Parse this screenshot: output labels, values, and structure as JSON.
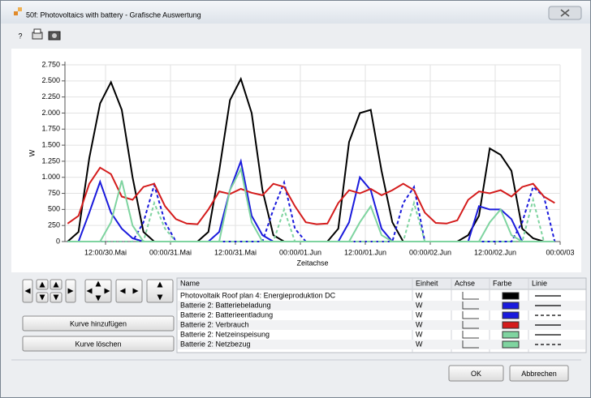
{
  "window": {
    "title": "50f: Photovoltaics with battery - Grafische Auswertung",
    "toolbar": {
      "help": "?"
    },
    "buttons": {
      "add_curve": "Kurve hinzufügen",
      "delete_curve": "Kurve löschen",
      "ok": "OK",
      "cancel": "Abbrechen"
    }
  },
  "legend_table": {
    "columns": [
      "Name",
      "Einheit",
      "Achse",
      "Farbe",
      "Linie"
    ]
  },
  "chart_data": {
    "type": "line",
    "xlabel": "Zeitachse",
    "ylabel": "W",
    "grid": true,
    "x": [
      5,
      7,
      9,
      11,
      13,
      15,
      17,
      19,
      21,
      23,
      25,
      27,
      29,
      31,
      33,
      35,
      37,
      39,
      41,
      43,
      45,
      47,
      49,
      51,
      53,
      55,
      57,
      59,
      61,
      63,
      65,
      67,
      69,
      71,
      73,
      75,
      77,
      79,
      81,
      83,
      85,
      87,
      89,
      91,
      93,
      95
    ],
    "xlim": [
      4.5,
      96
    ],
    "xticks": [
      {
        "value": 12,
        "label": "12:00/30.Mai"
      },
      {
        "value": 24,
        "label": "00:00/31.Mai"
      },
      {
        "value": 36,
        "label": "12:00/31.Mai"
      },
      {
        "value": 48,
        "label": "00:00/01.Jun"
      },
      {
        "value": 60,
        "label": "12:00/01.Jun"
      },
      {
        "value": 72,
        "label": "00:00/02.Jun"
      },
      {
        "value": 84,
        "label": "12:00/02.Jun"
      },
      {
        "value": 96,
        "label": "00:00/03"
      }
    ],
    "ylim": [
      0,
      2750
    ],
    "yticks": [
      0,
      250,
      500,
      750,
      {
        "value": 1000,
        "label": "1.000"
      },
      {
        "value": 1250,
        "label": "1.250"
      },
      {
        "value": 1500,
        "label": "1.500"
      },
      {
        "value": 1750,
        "label": "1.750"
      },
      {
        "value": 2000,
        "label": "2.000"
      },
      {
        "value": 2250,
        "label": "2.250"
      },
      {
        "value": 2500,
        "label": "2.500"
      },
      {
        "value": 2750,
        "label": "2.750"
      }
    ],
    "series": [
      {
        "name": "Photovoltaik Roof plan 4: Energieproduktion DC",
        "unit": "W",
        "color": "#000000",
        "dashed": false,
        "values": [
          0,
          150,
          1300,
          2150,
          2480,
          2050,
          1000,
          150,
          0,
          0,
          0,
          0,
          0,
          150,
          1100,
          2200,
          2530,
          2000,
          800,
          100,
          0,
          0,
          0,
          0,
          0,
          200,
          1550,
          2000,
          2050,
          1100,
          300,
          0,
          0,
          0,
          0,
          0,
          0,
          100,
          400,
          1450,
          1350,
          1100,
          200,
          50,
          0,
          0
        ]
      },
      {
        "name": "Batterie 2: Batteriebeladung",
        "unit": "W",
        "color": "#1a1adc",
        "dashed": false,
        "values": [
          0,
          0,
          450,
          930,
          450,
          200,
          50,
          0,
          0,
          0,
          0,
          0,
          0,
          0,
          150,
          800,
          1250,
          400,
          100,
          0,
          0,
          0,
          0,
          0,
          0,
          0,
          300,
          1000,
          800,
          200,
          0,
          0,
          0,
          0,
          0,
          0,
          0,
          0,
          550,
          500,
          500,
          350,
          0,
          0,
          0,
          0
        ]
      },
      {
        "name": "Batterie 2: Batterieentladung",
        "unit": "W",
        "color": "#1a1adc",
        "dashed": true,
        "values": [
          0,
          0,
          0,
          0,
          0,
          0,
          0,
          300,
          880,
          300,
          0,
          0,
          0,
          0,
          0,
          0,
          0,
          0,
          0,
          500,
          920,
          200,
          0,
          0,
          0,
          0,
          0,
          0,
          0,
          0,
          0,
          600,
          850,
          0,
          0,
          0,
          0,
          0,
          0,
          0,
          0,
          0,
          300,
          850,
          700,
          0
        ]
      },
      {
        "name": "Batterie 2: Verbrauch",
        "unit": "W",
        "color": "#d41c1c",
        "dashed": false,
        "values": [
          280,
          400,
          900,
          1150,
          1050,
          700,
          650,
          850,
          900,
          550,
          350,
          280,
          270,
          500,
          780,
          740,
          820,
          760,
          720,
          900,
          850,
          550,
          300,
          270,
          280,
          600,
          800,
          750,
          820,
          720,
          800,
          900,
          800,
          450,
          290,
          280,
          330,
          650,
          780,
          750,
          800,
          700,
          850,
          900,
          700,
          600
        ]
      },
      {
        "name": "Batterie 2: Netzeinspeisung",
        "unit": "W",
        "color": "#7fd4a0",
        "dashed": false,
        "values": [
          0,
          0,
          0,
          0,
          300,
          950,
          250,
          0,
          0,
          0,
          0,
          0,
          0,
          0,
          0,
          800,
          1130,
          300,
          0,
          0,
          0,
          0,
          0,
          0,
          0,
          0,
          0,
          300,
          550,
          100,
          0,
          0,
          0,
          0,
          0,
          0,
          0,
          0,
          0,
          300,
          500,
          100,
          0,
          0,
          0,
          0
        ]
      },
      {
        "name": "Batterie 2: Netzbezug",
        "unit": "W",
        "color": "#7fd4a0",
        "dashed": true,
        "values": [
          0,
          0,
          0,
          0,
          0,
          0,
          0,
          0,
          600,
          200,
          0,
          0,
          0,
          0,
          0,
          0,
          0,
          0,
          0,
          0,
          500,
          0,
          0,
          0,
          0,
          0,
          0,
          0,
          0,
          0,
          0,
          0,
          600,
          0,
          0,
          0,
          0,
          0,
          0,
          0,
          0,
          0,
          0,
          650,
          0,
          0
        ]
      }
    ]
  }
}
